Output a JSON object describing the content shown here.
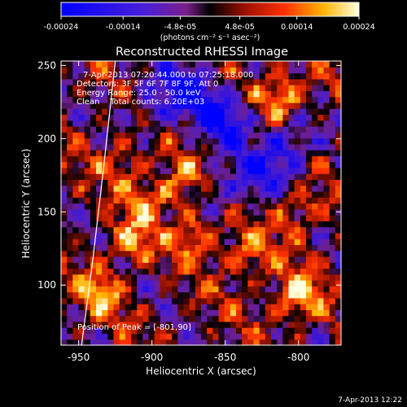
{
  "chart_data": {
    "type": "heatmap",
    "title": "Reconstructed RHESSI Image",
    "xlabel": "Heliocentric X (arcsec)",
    "ylabel": "Heliocentric Y (arcsec)",
    "xlim": [
      -962,
      -771
    ],
    "ylim": [
      59,
      253
    ],
    "xticks": [
      -950,
      -900,
      -850,
      -800
    ],
    "xtick_labels": [
      "-950",
      "-900",
      "-850",
      "-800"
    ],
    "yticks": [
      100,
      150,
      200,
      250
    ],
    "ytick_labels": [
      "100",
      "150",
      "200",
      "250"
    ],
    "colorbar": {
      "min": -0.00024,
      "max": 0.00024,
      "ticks": [
        -0.00024,
        -0.00014,
        -4.8e-05,
        4.8e-05,
        0.00014,
        0.00024
      ],
      "tick_labels": [
        "-0.00024",
        "-0.00014",
        "-4.8e-05",
        "4.8e-05",
        "0.00014",
        "0.00024"
      ],
      "unit_label": "(photons cm⁻² s⁻¹ asec⁻²)"
    },
    "annotations": [
      "7-Apr-2013 07:20:44.000 to 07:25:18.000",
      "Detectors: 3F 5F 6F 7F 8F 9F, Att 0",
      "Energy Range: 25.0 - 50.0 keV",
      "Clean    Total counts: 6.20E+03"
    ],
    "peak_label": "Position of Peak = [-801,90]",
    "peak": [
      -801,
      90
    ],
    "limb_curve": [
      [
        -948,
        59
      ],
      [
        -940,
        120
      ],
      [
        -933,
        180
      ],
      [
        -925,
        253
      ]
    ],
    "hot_regions": [
      {
        "x": -801,
        "y": 92,
        "intensity": 1.0
      },
      {
        "x": -812,
        "y": 230,
        "intensity": 0.9
      },
      {
        "x": -875,
        "y": 170,
        "intensity": 0.75
      },
      {
        "x": -870,
        "y": 135,
        "intensity": 0.7
      },
      {
        "x": -915,
        "y": 130,
        "intensity": 0.7
      },
      {
        "x": -935,
        "y": 95,
        "intensity": 0.7
      },
      {
        "x": -835,
        "y": 120,
        "intensity": 0.65
      },
      {
        "x": -800,
        "y": 150,
        "intensity": 0.6
      },
      {
        "x": -900,
        "y": 160,
        "intensity": 0.6
      },
      {
        "x": -920,
        "y": 185,
        "intensity": 0.55
      }
    ],
    "cold_regions": [
      {
        "x": -850,
        "y": 215,
        "intensity": 0.85
      },
      {
        "x": -875,
        "y": 235,
        "intensity": 0.8
      },
      {
        "x": -808,
        "y": 195,
        "intensity": 0.75
      },
      {
        "x": -860,
        "y": 165,
        "intensity": 0.55
      },
      {
        "x": -830,
        "y": 175,
        "intensity": 0.5
      },
      {
        "x": -900,
        "y": 220,
        "intensity": 0.45
      }
    ]
  },
  "footer_timestamp": "7-Apr-2013 12:22"
}
